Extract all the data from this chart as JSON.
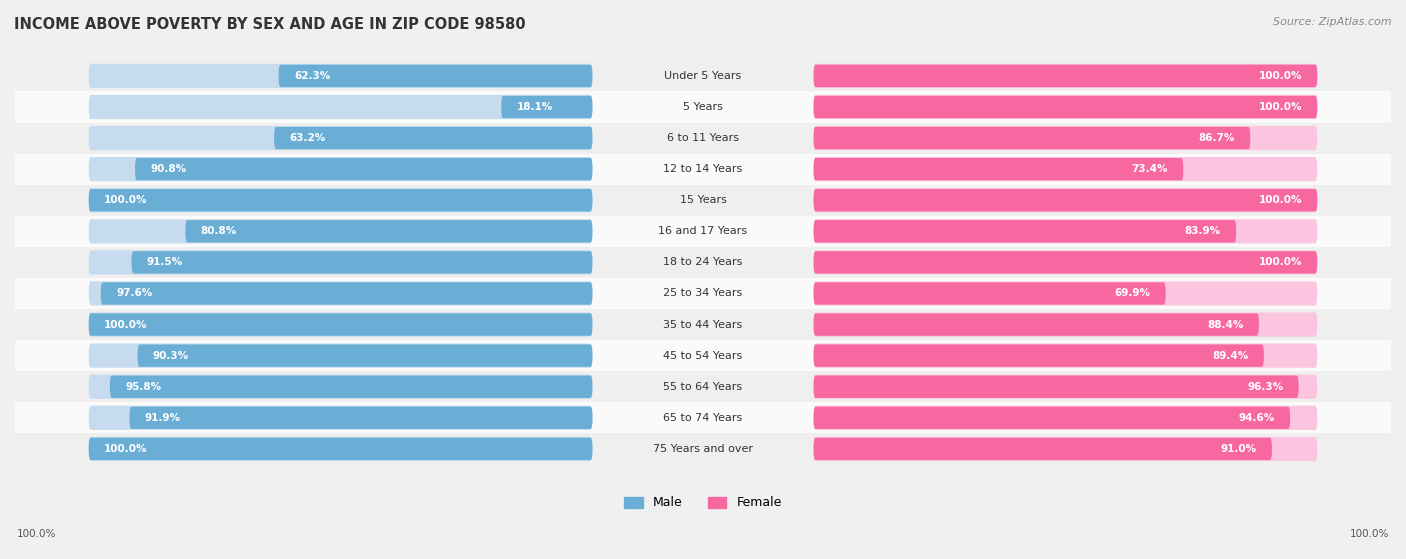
{
  "title": "INCOME ABOVE POVERTY BY SEX AND AGE IN ZIP CODE 98580",
  "source": "Source: ZipAtlas.com",
  "categories": [
    "Under 5 Years",
    "5 Years",
    "6 to 11 Years",
    "12 to 14 Years",
    "15 Years",
    "16 and 17 Years",
    "18 to 24 Years",
    "25 to 34 Years",
    "35 to 44 Years",
    "45 to 54 Years",
    "55 to 64 Years",
    "65 to 74 Years",
    "75 Years and over"
  ],
  "male_values": [
    62.3,
    18.1,
    63.2,
    90.8,
    100.0,
    80.8,
    91.5,
    97.6,
    100.0,
    90.3,
    95.8,
    91.9,
    100.0
  ],
  "female_values": [
    100.0,
    100.0,
    86.7,
    73.4,
    100.0,
    83.9,
    100.0,
    69.9,
    88.4,
    89.4,
    96.3,
    94.6,
    91.0
  ],
  "male_color": "#6aaed6",
  "male_color_light": "#c6dcee",
  "female_color": "#f768a1",
  "female_color_light": "#fcc5df",
  "male_label": "Male",
  "female_label": "Female",
  "bg_odd": "#efefef",
  "bg_even": "#fafafa",
  "max_value": 100.0,
  "title_fontsize": 10.5,
  "label_fontsize": 8.0,
  "value_fontsize": 7.5,
  "source_fontsize": 8,
  "footer_label": "100.0%"
}
